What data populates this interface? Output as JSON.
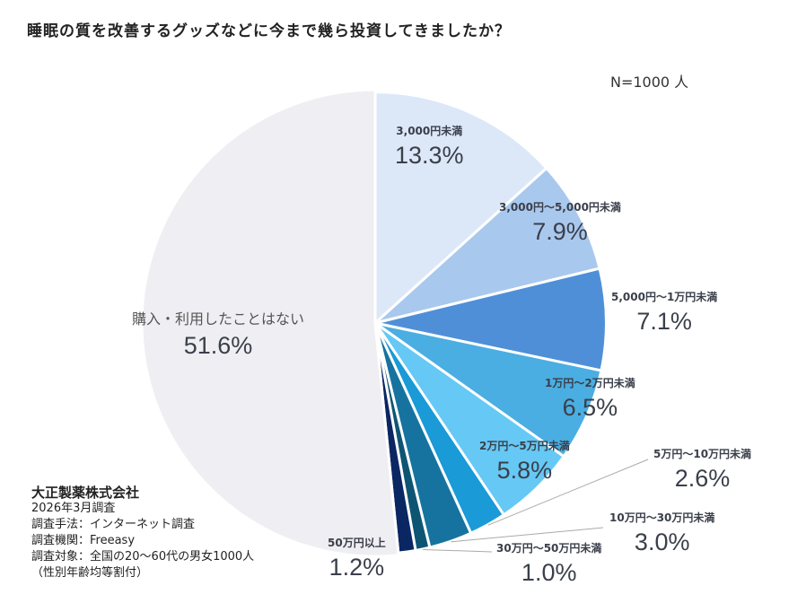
{
  "title": "睡眠の質を改善するグッズなどに今まで幾ら投資してきましたか？",
  "sample": "N=1000 人",
  "chart_data": {
    "type": "pie",
    "title": "睡眠の質を改善するグッズなどに今まで幾ら投資してきましたか？",
    "start": "top",
    "direction": "clockwise",
    "slices": [
      {
        "label": "3,000円未満",
        "value": 13.3,
        "pct": "13.3%",
        "color": "#dce8f8"
      },
      {
        "label": "3,000円〜5,000円未満",
        "value": 7.9,
        "pct": "7.9%",
        "color": "#a9c8ee"
      },
      {
        "label": "5,000円〜1万円未満",
        "value": 7.1,
        "pct": "7.1%",
        "color": "#4f8fd8"
      },
      {
        "label": "1万円〜2万円未満",
        "value": 6.5,
        "pct": "6.5%",
        "color": "#4aaee2"
      },
      {
        "label": "2万円〜5万円未満",
        "value": 5.8,
        "pct": "5.8%",
        "color": "#66c8f4"
      },
      {
        "label": "5万円〜10万円未満",
        "value": 2.6,
        "pct": "2.6%",
        "color": "#1a9ad6"
      },
      {
        "label": "10万円〜30万円未満",
        "value": 3.0,
        "pct": "3.0%",
        "color": "#16739f"
      },
      {
        "label": "30万円〜50万円未満",
        "value": 1.0,
        "pct": "1.0%",
        "color": "#0e5574"
      },
      {
        "label": "50万円以上",
        "value": 1.2,
        "pct": "1.2%",
        "color": "#0a2663"
      },
      {
        "label": "購入・利用したことはない",
        "value": 51.6,
        "pct": "51.6%",
        "color": "#efeef2"
      }
    ]
  },
  "notes": {
    "company": "大正製薬株式会社",
    "lines": [
      "2026年3月調査",
      "調査手法：インターネット調査",
      "調査機関：Freeasy",
      "調査対象：全国の20〜60代の男女1000人",
      "（性別年齢均等割付）"
    ]
  }
}
